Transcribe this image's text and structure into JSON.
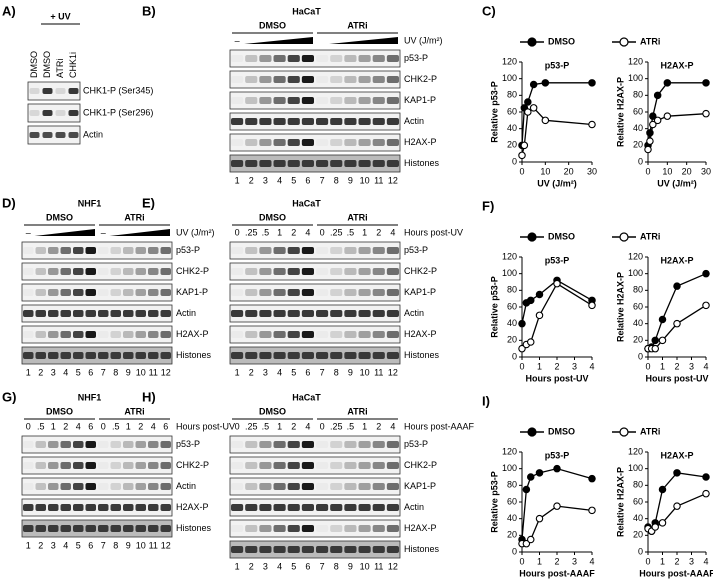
{
  "panel_a": {
    "label": "A)",
    "treatment": "+ UV",
    "lanes": [
      "DMSO",
      "DMSO",
      "ATRi",
      "CHK1i"
    ],
    "rows": [
      "CHK1-P (Ser345)",
      "CHK1-P (Ser296)",
      "Actin"
    ]
  },
  "blots": [
    {
      "label": "B)",
      "cell": "HaCaT",
      "groups": [
        "DMSO",
        "ATRi"
      ],
      "dose": [
        "–"
      ],
      "condition": "UV (J/m²)",
      "rows": [
        "p53-P",
        "CHK2-P",
        "KAP1-P",
        "Actin",
        "H2AX-P",
        "Histones"
      ],
      "lanes": [
        1,
        2,
        3,
        4,
        5,
        6,
        7,
        8,
        9,
        10,
        11,
        12
      ]
    },
    {
      "label": "D)",
      "cell": "NHF1",
      "groups": [
        "DMSO",
        "ATRi"
      ],
      "dose": [
        "–",
        "–"
      ],
      "condition": "UV (J/m²)",
      "rows": [
        "p53-P",
        "CHK2-P",
        "KAP1-P",
        "Actin",
        "H2AX-P",
        "Histones"
      ],
      "lanes": [
        1,
        2,
        3,
        4,
        5,
        6,
        7,
        8,
        9,
        10,
        11,
        12
      ]
    },
    {
      "label": "E)",
      "cell": "HaCaT",
      "groups": [
        "DMSO",
        "ATRi"
      ],
      "times": [
        "0",
        ".25",
        ".5",
        "1",
        "2",
        "4",
        "0",
        ".25",
        ".5",
        "1",
        "2",
        "4"
      ],
      "condition": "Hours post-UV",
      "rows": [
        "p53-P",
        "CHK2-P",
        "KAP1-P",
        "Actin",
        "H2AX-P",
        "Histones"
      ],
      "lanes": [
        1,
        2,
        3,
        4,
        5,
        6,
        7,
        8,
        9,
        10,
        11,
        12
      ]
    },
    {
      "label": "G)",
      "cell": "NHF1",
      "groups": [
        "DMSO",
        "ATRi"
      ],
      "times": [
        "0",
        ".5",
        "1",
        "2",
        "4",
        "6",
        "0",
        ".5",
        "1",
        "2",
        "4",
        "6"
      ],
      "condition": "Hours post-UV",
      "rows": [
        "p53-P",
        "CHK2-P",
        "Actin",
        "H2AX-P",
        "Histones"
      ],
      "lanes": [
        1,
        2,
        3,
        4,
        5,
        6,
        7,
        8,
        9,
        10,
        11,
        12
      ]
    },
    {
      "label": "H)",
      "cell": "HaCaT",
      "groups": [
        "DMSO",
        "ATRi"
      ],
      "times": [
        "0",
        ".25",
        ".5",
        "1",
        "2",
        "4",
        "0",
        ".25",
        ".5",
        "1",
        "2",
        "4"
      ],
      "condition": "Hours post-AAAF",
      "rows": [
        "p53-P",
        "CHK2-P",
        "KAP1-P",
        "Actin",
        "H2AX-P",
        "Histones"
      ],
      "lanes": [
        1,
        2,
        3,
        4,
        5,
        6,
        7,
        8,
        9,
        10,
        11,
        12
      ]
    }
  ],
  "chart_data": [
    {
      "type": "line",
      "label": "C)",
      "xlabel": "UV (J/m²)",
      "x": [
        0,
        1,
        2.5,
        5,
        10,
        30
      ],
      "xlim": [
        0,
        30
      ],
      "xticks": [
        0,
        10,
        20,
        30
      ],
      "ylim": [
        0,
        120
      ],
      "yticks": [
        0,
        20,
        40,
        60,
        80,
        100,
        120
      ],
      "series": [
        {
          "name": "DMSO",
          "color": "#000000",
          "marker_fill": "#000000"
        },
        {
          "name": "ATRi",
          "color": "#000000",
          "marker_fill": "#ffffff"
        }
      ],
      "plots": [
        {
          "title": "p53-P",
          "ylabel": "Relative p53-P",
          "series": [
            {
              "values": [
                20,
                65,
                72,
                93,
                95,
                95
              ]
            },
            {
              "values": [
                8,
                20,
                60,
                65,
                50,
                45
              ]
            }
          ]
        },
        {
          "title": "H2AX-P",
          "ylabel": "Relative H2AX-P",
          "series": [
            {
              "values": [
                20,
                35,
                55,
                80,
                95,
                95
              ]
            },
            {
              "values": [
                15,
                25,
                45,
                50,
                55,
                58
              ]
            }
          ]
        }
      ]
    },
    {
      "type": "line",
      "label": "F)",
      "xlabel": "Hours post-UV",
      "x": [
        0,
        0.25,
        0.5,
        1,
        2,
        4
      ],
      "xlim": [
        0,
        4
      ],
      "xticks": [
        0,
        1,
        2,
        3,
        4
      ],
      "ylim": [
        0,
        120
      ],
      "yticks": [
        0,
        20,
        40,
        60,
        80,
        100,
        120
      ],
      "series": [
        {
          "name": "DMSO",
          "color": "#000000",
          "marker_fill": "#000000"
        },
        {
          "name": "ATRi",
          "color": "#000000",
          "marker_fill": "#ffffff"
        }
      ],
      "plots": [
        {
          "title": "p53-P",
          "ylabel": "Relative p53-P",
          "series": [
            {
              "values": [
                40,
                65,
                68,
                75,
                92,
                68
              ]
            },
            {
              "values": [
                10,
                15,
                18,
                50,
                88,
                62
              ]
            }
          ]
        },
        {
          "title": "H2AX-P",
          "ylabel": "Relative H2AX-P",
          "series": [
            {
              "values": [
                10,
                12,
                20,
                45,
                85,
                100
              ]
            },
            {
              "values": [
                10,
                10,
                10,
                20,
                40,
                62
              ]
            }
          ]
        }
      ]
    },
    {
      "type": "line",
      "label": "I)",
      "xlabel": "Hours post-AAAF",
      "x": [
        0,
        0.25,
        0.5,
        1,
        2,
        4
      ],
      "xlim": [
        0,
        4
      ],
      "xticks": [
        0,
        1,
        2,
        3,
        4
      ],
      "ylim": [
        0,
        120
      ],
      "yticks": [
        0,
        20,
        40,
        60,
        80,
        100,
        120
      ],
      "series": [
        {
          "name": "DMSO",
          "color": "#000000",
          "marker_fill": "#000000"
        },
        {
          "name": "ATRi",
          "color": "#000000",
          "marker_fill": "#ffffff"
        }
      ],
      "plots": [
        {
          "title": "p53-P",
          "ylabel": "Relative p53-P",
          "series": [
            {
              "values": [
                15,
                75,
                90,
                95,
                100,
                88
              ]
            },
            {
              "values": [
                10,
                10,
                15,
                40,
                55,
                50
              ]
            }
          ]
        },
        {
          "title": "H2AX-P",
          "ylabel": "Relative H2AX-P",
          "series": [
            {
              "values": [
                30,
                25,
                35,
                75,
                95,
                90
              ]
            },
            {
              "values": [
                28,
                25,
                30,
                35,
                55,
                70
              ]
            }
          ]
        }
      ]
    }
  ]
}
